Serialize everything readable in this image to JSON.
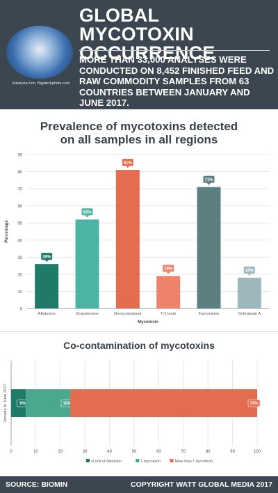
{
  "header": {
    "title_line1": "GLOBAL MYCOTOXIN",
    "title_line2": "OCCURRENCE",
    "subtitle": "MORE THAN 33,000 ANALYSES WERE CONDUCTED ON 8,452 FINISHED FEED AND RAW COMMODITY SAMPLES FROM 63 COUNTRIES BETWEEN JANUARY AND JUNE 2017.",
    "photo_credit": "Kateryna Kon, Bigstockphoto.com"
  },
  "footer": {
    "source": "SOURCE: BIOMIN",
    "copyright": "COPYRIGHT WATT GLOBAL MEDIA 2017"
  },
  "chart_data": [
    {
      "type": "bar",
      "title": "Prevalence of mycotoxins detected on all samples in all regions",
      "title_line1": "Prevalence of mycotoxins detected",
      "title_line2": "on all samples in all regions",
      "categories": [
        "Aflatoxins",
        "Zearalenone",
        "Deoxynivalenol",
        "T-2 toxin",
        "Fumonisins",
        "Ochratoxin A"
      ],
      "values": [
        26,
        52,
        81,
        19,
        71,
        18
      ],
      "value_labels": [
        "26%",
        "52%",
        "81%",
        "19%",
        "71%",
        "18%"
      ],
      "colors": [
        "#1f7a6a",
        "#4db3a2",
        "#e46c4f",
        "#ef826a",
        "#5c7f7f",
        "#9db7bd"
      ],
      "xlabel": "Mycotoxin",
      "ylabel": "Percentage",
      "ylim": [
        0,
        90
      ],
      "yticks": [
        0,
        10,
        20,
        30,
        40,
        50,
        60,
        70,
        80,
        90
      ],
      "grid": true
    },
    {
      "type": "bar",
      "orientation": "horizontal",
      "stacked": true,
      "title": "Co-contamination of mycotoxins",
      "categories": [
        "January to June 2017"
      ],
      "series": [
        {
          "name": "<Limit of detection",
          "values": [
            6
          ],
          "label": "6%",
          "color": "#1f7a6a"
        },
        {
          "name": "1 mycotoxin",
          "values": [
            18
          ],
          "label": "18%",
          "color": "#4aa88f"
        },
        {
          "name": "More than 1 mycotoxin",
          "values": [
            76
          ],
          "label": "76%",
          "color": "#e46c4f"
        }
      ],
      "xlim": [
        0,
        100
      ],
      "xticks": [
        0,
        10,
        20,
        30,
        40,
        50,
        60,
        70,
        80,
        90,
        100
      ],
      "legend": "bottom",
      "grid": true
    }
  ]
}
